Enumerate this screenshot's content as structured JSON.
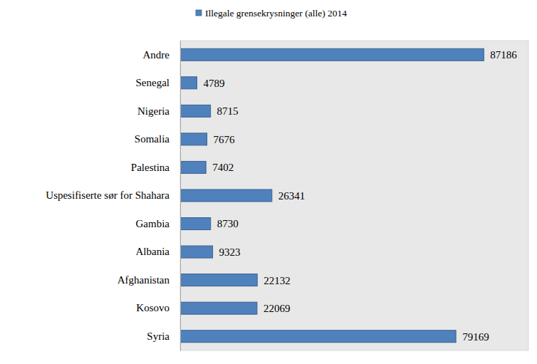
{
  "chart_data": {
    "type": "bar",
    "orientation": "horizontal",
    "categories": [
      "Andre",
      "Senegal",
      "Nigeria",
      "Somalia",
      "Palestina",
      "Uspesifiserte sør for Shahara",
      "Gambia",
      "Albania",
      "Afghanistan",
      "Kosovo",
      "Syria"
    ],
    "series": [
      {
        "name": "Illegale grensekrysninger (alle) 2014",
        "color": "#4f81bd",
        "values": [
          87186,
          4789,
          8715,
          7676,
          7402,
          26341,
          8730,
          9323,
          22132,
          22069,
          79169
        ]
      }
    ],
    "xlim": [
      0,
      100000
    ],
    "tick_labels": false,
    "data_labels": true,
    "legend": "top",
    "grid": false
  }
}
